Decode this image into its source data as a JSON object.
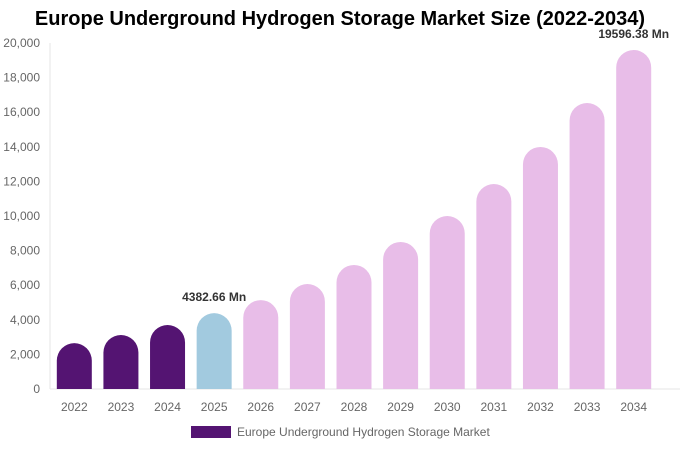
{
  "chart_data": {
    "type": "bar",
    "title": "Europe Underground Hydrogen Storage Market Size (2022-2034)",
    "categories": [
      "2022",
      "2023",
      "2024",
      "2025",
      "2026",
      "2027",
      "2028",
      "2029",
      "2030",
      "2031",
      "2032",
      "2033",
      "2034"
    ],
    "series": [
      {
        "name": "Europe Underground Hydrogen Storage Market",
        "values": [
          2650,
          3120,
          3700,
          4382.66,
          5140,
          6070,
          7170,
          8500,
          10000,
          11850,
          13990,
          16530,
          19596.38
        ]
      }
    ],
    "data_labels": {
      "3": "4382.66 Mn",
      "12": "19596.38 Mn"
    },
    "ylim": [
      0,
      20000
    ],
    "yticks": [
      "0",
      "2,000",
      "4,000",
      "6,000",
      "8,000",
      "10,000",
      "12,000",
      "14,000",
      "16,000",
      "18,000",
      "20,000"
    ],
    "colors": {
      "historical": "#541472",
      "current": "#a2cadf",
      "forecast": "#e8bde8"
    },
    "legend_placement": "bottom",
    "grid": false
  }
}
